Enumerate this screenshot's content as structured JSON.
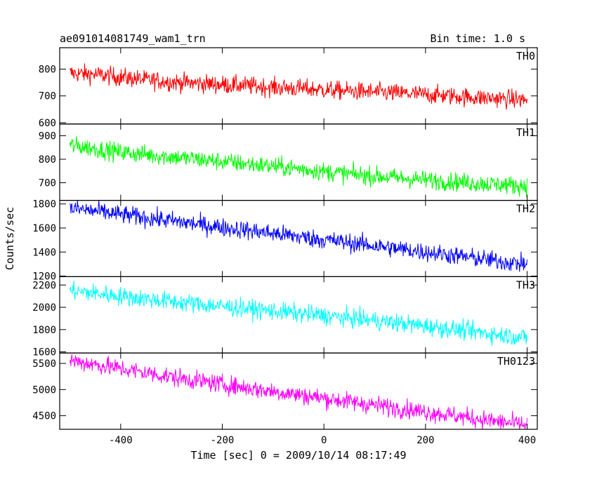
{
  "chart_data": {
    "type": "line",
    "title": "ae091014081749_wam1_trn",
    "subtitle": "Bin time: 1.0 s",
    "xlabel": "Time [sec] 0 = 2009/10/14 08:17:49",
    "ylabel": "Counts/sec",
    "xlim": [
      -520,
      420
    ],
    "xticks": [
      -400,
      -200,
      0,
      200,
      400
    ],
    "grid": false,
    "panels": [
      {
        "name": "TH0",
        "color": "#ff0000",
        "ylim": [
          595,
          880
        ],
        "yticks": [
          600,
          700,
          800
        ],
        "x": [
          -500,
          -450,
          -400,
          -350,
          -300,
          -250,
          -200,
          -150,
          -100,
          -50,
          0,
          50,
          100,
          150,
          200,
          250,
          300,
          350,
          400
        ],
        "values": [
          785,
          780,
          770,
          760,
          752,
          747,
          742,
          738,
          732,
          728,
          723,
          718,
          714,
          710,
          705,
          700,
          694,
          690,
          685
        ]
      },
      {
        "name": "TH1",
        "color": "#00ff00",
        "ylim": [
          625,
          950
        ],
        "yticks": [
          700,
          800,
          900
        ],
        "x": [
          -500,
          -450,
          -400,
          -350,
          -300,
          -250,
          -200,
          -150,
          -100,
          -50,
          0,
          50,
          100,
          150,
          200,
          250,
          300,
          350,
          400
        ],
        "values": [
          860,
          845,
          830,
          820,
          810,
          800,
          790,
          780,
          770,
          760,
          748,
          737,
          728,
          720,
          712,
          705,
          698,
          692,
          686
        ]
      },
      {
        "name": "TH2",
        "color": "#0000ff",
        "ylim": [
          1195,
          1830
        ],
        "yticks": [
          1200,
          1400,
          1600,
          1800
        ],
        "x": [
          -500,
          -450,
          -400,
          -350,
          -300,
          -250,
          -200,
          -150,
          -100,
          -50,
          0,
          50,
          100,
          150,
          200,
          250,
          300,
          350,
          400
        ],
        "values": [
          1765,
          1740,
          1712,
          1685,
          1660,
          1632,
          1605,
          1580,
          1555,
          1528,
          1502,
          1478,
          1452,
          1425,
          1400,
          1374,
          1348,
          1322,
          1298
        ]
      },
      {
        "name": "TH3",
        "color": "#00ffff",
        "ylim": [
          1590,
          2275
        ],
        "yticks": [
          1600,
          1800,
          2000,
          2200
        ],
        "x": [
          -500,
          -450,
          -400,
          -350,
          -300,
          -250,
          -200,
          -150,
          -100,
          -50,
          0,
          50,
          100,
          150,
          200,
          250,
          300,
          350,
          400
        ],
        "values": [
          2150,
          2125,
          2100,
          2075,
          2052,
          2030,
          2008,
          1987,
          1966,
          1945,
          1925,
          1903,
          1880,
          1857,
          1832,
          1805,
          1778,
          1752,
          1728
        ]
      },
      {
        "name": "TH0123",
        "color": "#ff00ff",
        "ylim": [
          4240,
          5700
        ],
        "yticks": [
          4500,
          5000,
          5500
        ],
        "x": [
          -500,
          -450,
          -400,
          -350,
          -300,
          -250,
          -200,
          -150,
          -100,
          -50,
          0,
          50,
          100,
          150,
          200,
          250,
          300,
          350,
          400
        ],
        "values": [
          5560,
          5480,
          5400,
          5320,
          5240,
          5170,
          5100,
          5030,
          4965,
          4900,
          4835,
          4770,
          4705,
          4640,
          4575,
          4510,
          4445,
          4380,
          4320
        ]
      }
    ]
  }
}
